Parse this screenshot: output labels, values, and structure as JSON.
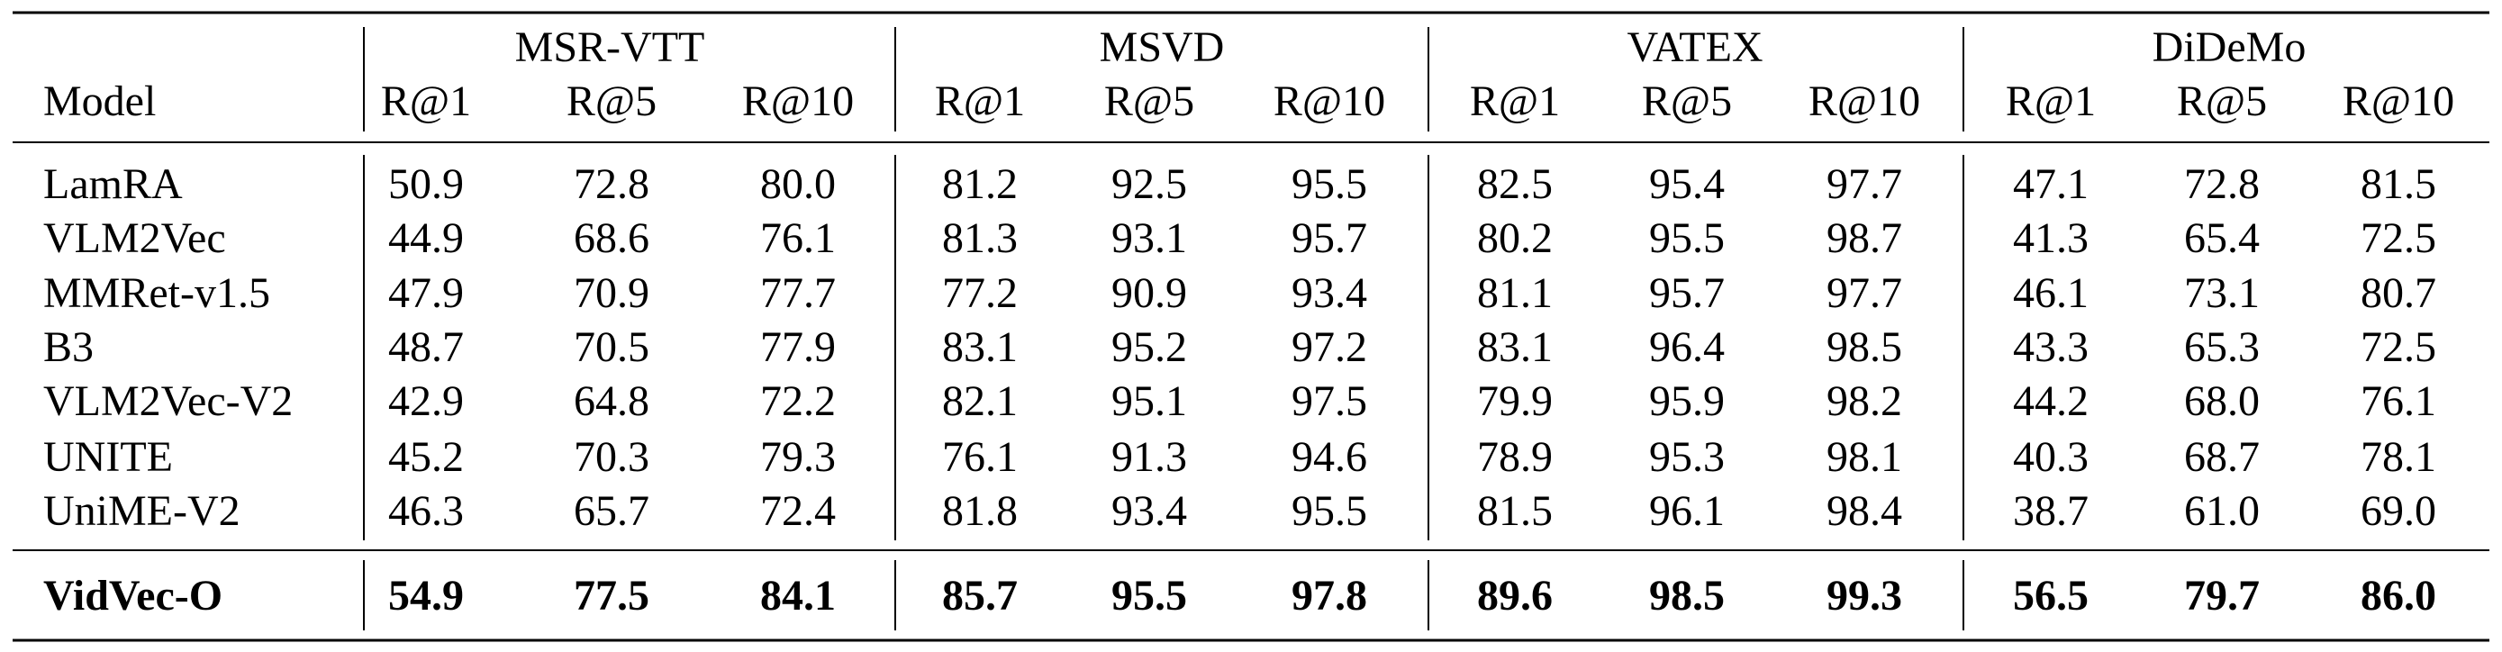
{
  "header": {
    "model": "Model",
    "groups": [
      "MSR-VTT",
      "MSVD",
      "VATEX",
      "DiDeMo"
    ],
    "metrics": [
      "R@1",
      "R@5",
      "R@10"
    ]
  },
  "rows": [
    {
      "model": "LamRA",
      "values": [
        "50.9",
        "72.8",
        "80.0",
        "81.2",
        "92.5",
        "95.5",
        "82.5",
        "95.4",
        "97.7",
        "47.1",
        "72.8",
        "81.5"
      ]
    },
    {
      "model": "VLM2Vec",
      "values": [
        "44.9",
        "68.6",
        "76.1",
        "81.3",
        "93.1",
        "95.7",
        "80.2",
        "95.5",
        "98.7",
        "41.3",
        "65.4",
        "72.5"
      ]
    },
    {
      "model": "MMRet-v1.5",
      "values": [
        "47.9",
        "70.9",
        "77.7",
        "77.2",
        "90.9",
        "93.4",
        "81.1",
        "95.7",
        "97.7",
        "46.1",
        "73.1",
        "80.7"
      ]
    },
    {
      "model": "B3",
      "values": [
        "48.7",
        "70.5",
        "77.9",
        "83.1",
        "95.2",
        "97.2",
        "83.1",
        "96.4",
        "98.5",
        "43.3",
        "65.3",
        "72.5"
      ]
    },
    {
      "model": "VLM2Vec-V2",
      "values": [
        "42.9",
        "64.8",
        "72.2",
        "82.1",
        "95.1",
        "97.5",
        "79.9",
        "95.9",
        "98.2",
        "44.2",
        "68.0",
        "76.1"
      ]
    },
    {
      "model": "UNITE",
      "values": [
        "45.2",
        "70.3",
        "79.3",
        "76.1",
        "91.3",
        "94.6",
        "78.9",
        "95.3",
        "98.1",
        "40.3",
        "68.7",
        "78.1"
      ]
    },
    {
      "model": "UniME-V2",
      "values": [
        "46.3",
        "65.7",
        "72.4",
        "81.8",
        "93.4",
        "95.5",
        "81.5",
        "96.1",
        "98.4",
        "38.7",
        "61.0",
        "69.0"
      ]
    }
  ],
  "proposed": {
    "model": "VidVec-O",
    "values": [
      "54.9",
      "77.5",
      "84.1",
      "85.7",
      "95.5",
      "97.8",
      "89.6",
      "98.5",
      "99.3",
      "56.5",
      "79.7",
      "86.0"
    ]
  }
}
